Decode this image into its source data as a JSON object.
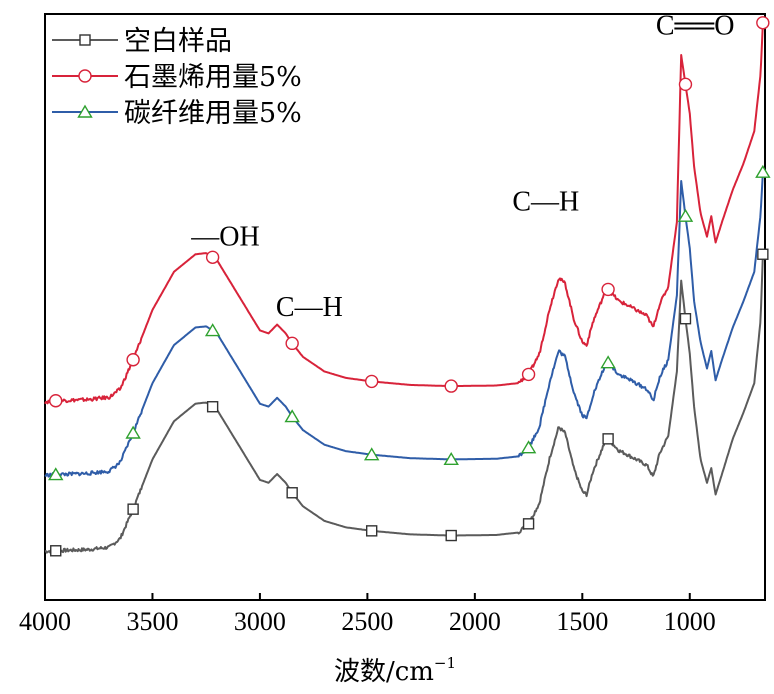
{
  "chart_data": {
    "type": "line",
    "xlabel": "波数/cm",
    "xlabel_sup": "−1",
    "ylabel": "",
    "xlim": [
      4000,
      650
    ],
    "ylim": [
      0,
      1
    ],
    "x_reversed": true,
    "grid": false,
    "y_ticks_visible": false,
    "legend_position": "top-left",
    "x_ticks": [
      4000,
      3500,
      3000,
      2500,
      2000,
      1500,
      1000
    ],
    "marker_x": [
      3950,
      3590,
      3220,
      2850,
      2480,
      2110,
      1750,
      1380,
      1020,
      660
    ],
    "series": [
      {
        "name": "空白样品",
        "color": "#5b5b5b",
        "marker": "square",
        "marker_color": "#333333",
        "points": [
          [
            4000,
            0.083
          ],
          [
            3950,
            0.084
          ],
          [
            3800,
            0.086
          ],
          [
            3700,
            0.09
          ],
          [
            3650,
            0.105
          ],
          [
            3590,
            0.155
          ],
          [
            3500,
            0.24
          ],
          [
            3400,
            0.305
          ],
          [
            3300,
            0.335
          ],
          [
            3250,
            0.337
          ],
          [
            3200,
            0.325
          ],
          [
            3100,
            0.265
          ],
          [
            3000,
            0.205
          ],
          [
            2960,
            0.2
          ],
          [
            2920,
            0.215
          ],
          [
            2880,
            0.2
          ],
          [
            2850,
            0.183
          ],
          [
            2800,
            0.16
          ],
          [
            2700,
            0.135
          ],
          [
            2600,
            0.124
          ],
          [
            2480,
            0.118
          ],
          [
            2300,
            0.112
          ],
          [
            2110,
            0.11
          ],
          [
            1900,
            0.111
          ],
          [
            1800,
            0.115
          ],
          [
            1750,
            0.13
          ],
          [
            1700,
            0.165
          ],
          [
            1650,
            0.245
          ],
          [
            1610,
            0.295
          ],
          [
            1580,
            0.285
          ],
          [
            1540,
            0.225
          ],
          [
            1500,
            0.185
          ],
          [
            1480,
            0.18
          ],
          [
            1450,
            0.22
          ],
          [
            1400,
            0.265
          ],
          [
            1380,
            0.275
          ],
          [
            1330,
            0.255
          ],
          [
            1300,
            0.25
          ],
          [
            1250,
            0.24
          ],
          [
            1200,
            0.23
          ],
          [
            1170,
            0.21
          ],
          [
            1140,
            0.25
          ],
          [
            1100,
            0.28
          ],
          [
            1060,
            0.39
          ],
          [
            1040,
            0.545
          ],
          [
            1020,
            0.48
          ],
          [
            1000,
            0.42
          ],
          [
            980,
            0.33
          ],
          [
            950,
            0.24
          ],
          [
            920,
            0.2
          ],
          [
            900,
            0.225
          ],
          [
            880,
            0.18
          ],
          [
            850,
            0.215
          ],
          [
            800,
            0.275
          ],
          [
            750,
            0.32
          ],
          [
            700,
            0.37
          ],
          [
            670,
            0.48
          ],
          [
            660,
            0.59
          ]
        ]
      },
      {
        "name": "石墨烯用量5%",
        "color": "#d8233a",
        "marker": "circle",
        "marker_color": "#d8233a",
        "points": [
          [
            4000,
            0.338
          ],
          [
            3950,
            0.34
          ],
          [
            3800,
            0.342
          ],
          [
            3700,
            0.346
          ],
          [
            3650,
            0.36
          ],
          [
            3590,
            0.41
          ],
          [
            3500,
            0.495
          ],
          [
            3400,
            0.56
          ],
          [
            3300,
            0.59
          ],
          [
            3250,
            0.592
          ],
          [
            3200,
            0.58
          ],
          [
            3100,
            0.52
          ],
          [
            3000,
            0.46
          ],
          [
            2960,
            0.455
          ],
          [
            2920,
            0.47
          ],
          [
            2880,
            0.455
          ],
          [
            2850,
            0.438
          ],
          [
            2800,
            0.415
          ],
          [
            2700,
            0.39
          ],
          [
            2600,
            0.379
          ],
          [
            2480,
            0.373
          ],
          [
            2300,
            0.367
          ],
          [
            2110,
            0.365
          ],
          [
            1900,
            0.366
          ],
          [
            1800,
            0.37
          ],
          [
            1750,
            0.385
          ],
          [
            1700,
            0.42
          ],
          [
            1650,
            0.5
          ],
          [
            1610,
            0.55
          ],
          [
            1580,
            0.54
          ],
          [
            1540,
            0.48
          ],
          [
            1500,
            0.44
          ],
          [
            1480,
            0.435
          ],
          [
            1450,
            0.475
          ],
          [
            1400,
            0.52
          ],
          [
            1380,
            0.53
          ],
          [
            1330,
            0.51
          ],
          [
            1300,
            0.505
          ],
          [
            1250,
            0.495
          ],
          [
            1200,
            0.485
          ],
          [
            1170,
            0.465
          ],
          [
            1140,
            0.505
          ],
          [
            1100,
            0.535
          ],
          [
            1060,
            0.645
          ],
          [
            1040,
            0.93
          ],
          [
            1020,
            0.88
          ],
          [
            1000,
            0.83
          ],
          [
            980,
            0.74
          ],
          [
            950,
            0.66
          ],
          [
            920,
            0.62
          ],
          [
            900,
            0.655
          ],
          [
            880,
            0.61
          ],
          [
            850,
            0.645
          ],
          [
            800,
            0.7
          ],
          [
            750,
            0.745
          ],
          [
            700,
            0.8
          ],
          [
            670,
            0.9
          ],
          [
            660,
            0.985
          ]
        ]
      },
      {
        "name": "碳纤维用量5%",
        "color": "#2f5da8",
        "marker": "triangle",
        "marker_color": "#2fa12f",
        "points": [
          [
            4000,
            0.213
          ],
          [
            3950,
            0.214
          ],
          [
            3800,
            0.216
          ],
          [
            3700,
            0.22
          ],
          [
            3650,
            0.235
          ],
          [
            3590,
            0.285
          ],
          [
            3500,
            0.37
          ],
          [
            3400,
            0.435
          ],
          [
            3300,
            0.465
          ],
          [
            3250,
            0.467
          ],
          [
            3200,
            0.455
          ],
          [
            3100,
            0.395
          ],
          [
            3000,
            0.335
          ],
          [
            2960,
            0.33
          ],
          [
            2920,
            0.345
          ],
          [
            2880,
            0.33
          ],
          [
            2850,
            0.313
          ],
          [
            2800,
            0.29
          ],
          [
            2700,
            0.265
          ],
          [
            2600,
            0.254
          ],
          [
            2480,
            0.248
          ],
          [
            2300,
            0.242
          ],
          [
            2110,
            0.24
          ],
          [
            1900,
            0.241
          ],
          [
            1800,
            0.245
          ],
          [
            1750,
            0.26
          ],
          [
            1700,
            0.295
          ],
          [
            1650,
            0.375
          ],
          [
            1610,
            0.425
          ],
          [
            1580,
            0.415
          ],
          [
            1540,
            0.355
          ],
          [
            1500,
            0.315
          ],
          [
            1480,
            0.31
          ],
          [
            1450,
            0.35
          ],
          [
            1400,
            0.395
          ],
          [
            1380,
            0.405
          ],
          [
            1330,
            0.385
          ],
          [
            1300,
            0.38
          ],
          [
            1250,
            0.37
          ],
          [
            1200,
            0.36
          ],
          [
            1170,
            0.34
          ],
          [
            1140,
            0.38
          ],
          [
            1100,
            0.41
          ],
          [
            1060,
            0.52
          ],
          [
            1040,
            0.715
          ],
          [
            1020,
            0.655
          ],
          [
            1000,
            0.6
          ],
          [
            980,
            0.51
          ],
          [
            950,
            0.44
          ],
          [
            920,
            0.395
          ],
          [
            900,
            0.425
          ],
          [
            880,
            0.375
          ],
          [
            850,
            0.41
          ],
          [
            800,
            0.465
          ],
          [
            750,
            0.51
          ],
          [
            700,
            0.56
          ],
          [
            670,
            0.66
          ],
          [
            660,
            0.73
          ]
        ]
      }
    ],
    "annotations": [
      {
        "text": "C══O",
        "x": 975,
        "y": 0.965
      },
      {
        "text": "C—H",
        "x": 1670,
        "y": 0.665
      },
      {
        "text": "—OH",
        "x": 3160,
        "y": 0.605
      },
      {
        "text": "C—H",
        "x": 2770,
        "y": 0.485
      }
    ]
  }
}
